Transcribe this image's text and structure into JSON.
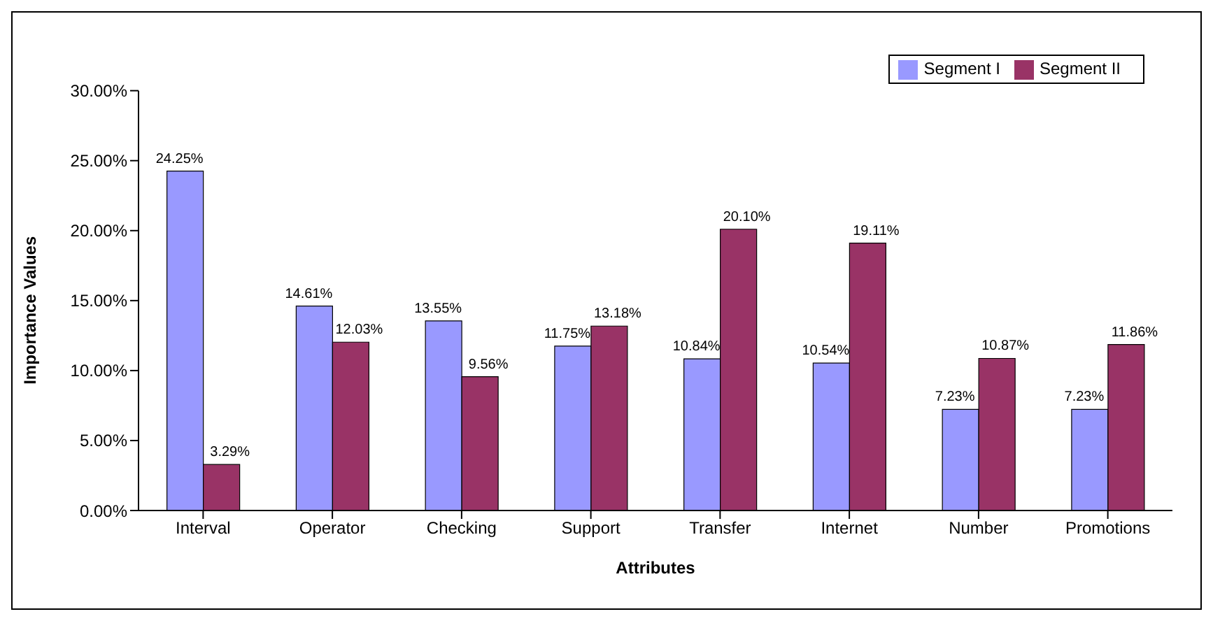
{
  "chart_data": {
    "type": "bar",
    "xlabel": "Attributes",
    "ylabel": "Importance Values",
    "categories": [
      "Interval",
      "Operator",
      "Checking",
      "Support",
      "Transfer",
      "Internet",
      "Number",
      "Promotions"
    ],
    "series": [
      {
        "name": "Segment I",
        "color": "#9999ff",
        "values": [
          24.25,
          14.61,
          13.55,
          11.75,
          10.84,
          10.54,
          7.23,
          7.23
        ],
        "value_labels": [
          "24.25%",
          "14.61%",
          "13.55%",
          "11.75%",
          "10.84%",
          "10.54%",
          "7.23%",
          "7.23%"
        ]
      },
      {
        "name": "Segment II",
        "color": "#993366",
        "values": [
          3.29,
          12.03,
          9.56,
          13.18,
          20.1,
          19.11,
          10.87,
          11.86
        ],
        "value_labels": [
          "3.29%",
          "12.03%",
          "9.56%",
          "13.18%",
          "20.10%",
          "19.11%",
          "10.87%",
          "11.86%"
        ]
      }
    ],
    "ylim": [
      0,
      30
    ],
    "yticks": [
      {
        "value": 0,
        "label": "0.00%"
      },
      {
        "value": 5,
        "label": "5.00%"
      },
      {
        "value": 10,
        "label": "10.00%"
      },
      {
        "value": 15,
        "label": "15.00%"
      },
      {
        "value": 20,
        "label": "20.00%"
      },
      {
        "value": 25,
        "label": "25.00%"
      },
      {
        "value": 30,
        "label": "30.00%"
      }
    ],
    "grid": false,
    "legend": "top right"
  }
}
